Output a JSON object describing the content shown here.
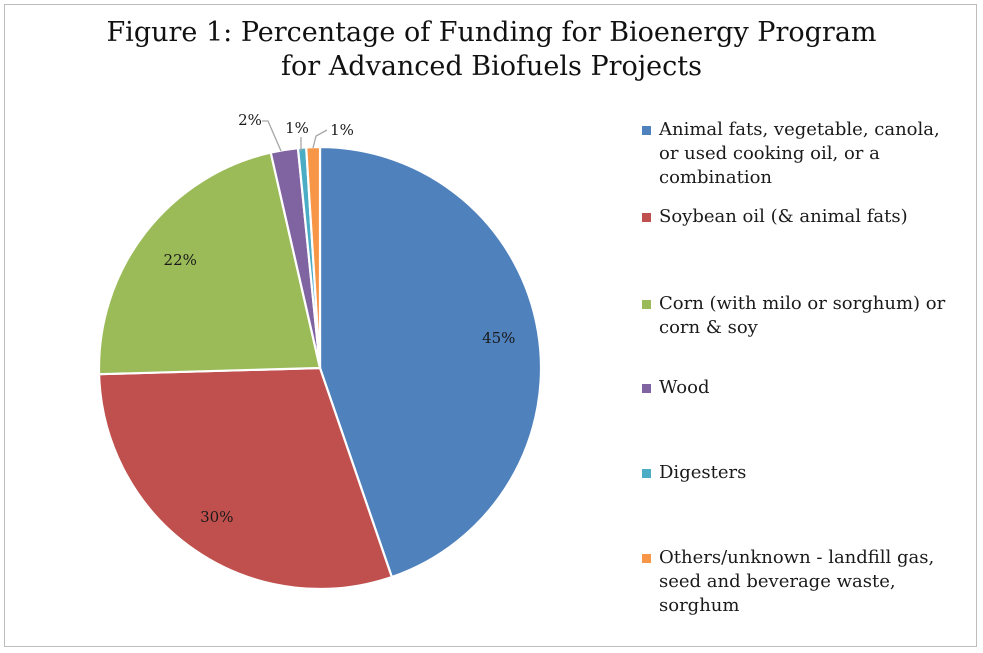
{
  "title_line1": "Figure 1: Percentage of Funding for Bioenergy Program",
  "title_line2": "for Advanced Biofuels Projects",
  "chart_data": {
    "type": "pie",
    "title": "Figure 1: Percentage of Funding for Bioenergy Program for Advanced Biofuels Projects",
    "legend_position": "right",
    "slices": [
      {
        "label": "Animal fats, vegetable, canola, or used cooking oil, or a combination",
        "value": 45,
        "display": "45%",
        "color": "#4f81bd"
      },
      {
        "label": "Soybean oil (& animal fats)",
        "value": 30,
        "display": "30%",
        "color": "#c0504d"
      },
      {
        "label": "Corn (with milo or sorghum) or corn & soy",
        "value": 22,
        "display": "22%",
        "color": "#9bbb59"
      },
      {
        "label": "Wood",
        "value": 2,
        "display": "2%",
        "color": "#8064a2"
      },
      {
        "label": "Digesters",
        "value": 0.6,
        "display": "1%",
        "color": "#4bacc6"
      },
      {
        "label": "Others/unknown - landfill gas, seed and beverage waste, sorghum",
        "value": 1,
        "display": "1%",
        "color": "#f79646"
      }
    ]
  }
}
